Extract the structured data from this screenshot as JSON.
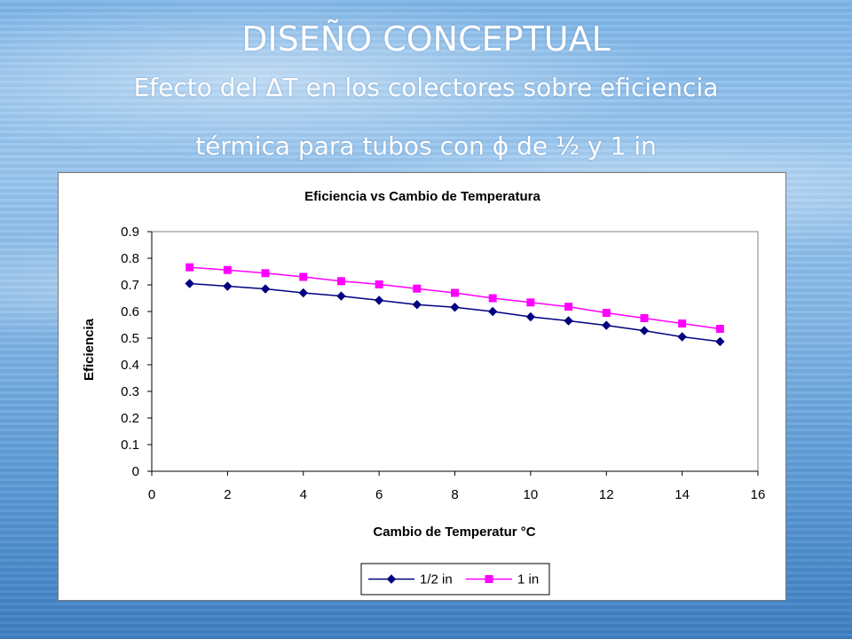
{
  "slide": {
    "title": "DISEÑO CONCEPTUAL",
    "subtitle_line1": "Efecto del ΔT en los colectores sobre eficiencia",
    "subtitle_line2_a": "térmica para tubos con ",
    "subtitle_symbol": "ϕ",
    "subtitle_line2_b": " de ½ y 1 in"
  },
  "chart_data": {
    "type": "line",
    "title": "Eficiencia vs Cambio de Temperatura",
    "xlabel": "Cambio de Temperatur °C",
    "ylabel": "Eficiencia",
    "xlim": [
      0,
      16
    ],
    "ylim": [
      0,
      0.9
    ],
    "xticks": [
      0,
      2,
      4,
      6,
      8,
      10,
      12,
      14,
      16
    ],
    "yticks": [
      0,
      0.1,
      0.2,
      0.3,
      0.4,
      0.5,
      0.6,
      0.7,
      0.8,
      0.9
    ],
    "grid": false,
    "legend_position": "bottom",
    "x": [
      1,
      2,
      3,
      4,
      5,
      6,
      7,
      8,
      9,
      10,
      11,
      12,
      13,
      14,
      15
    ],
    "series": [
      {
        "name": "1/2 in",
        "color": "#000080",
        "marker": "diamond",
        "values": [
          0.705,
          0.695,
          0.685,
          0.67,
          0.658,
          0.642,
          0.626,
          0.616,
          0.6,
          0.58,
          0.565,
          0.548,
          0.528,
          0.505,
          0.487
        ]
      },
      {
        "name": "1 in",
        "color": "#ff00ff",
        "marker": "square",
        "values": [
          0.766,
          0.756,
          0.744,
          0.73,
          0.714,
          0.702,
          0.686,
          0.67,
          0.65,
          0.634,
          0.618,
          0.595,
          0.575,
          0.555,
          0.535
        ]
      }
    ]
  }
}
